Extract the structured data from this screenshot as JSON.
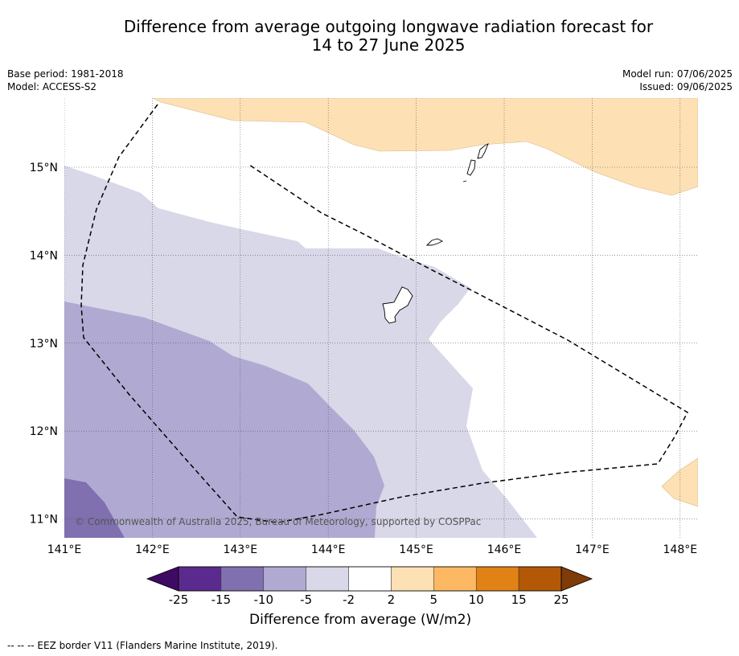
{
  "title": {
    "line1": "Difference from average outgoing longwave radiation forecast for",
    "line2": "14 to 27 June 2025"
  },
  "info": {
    "base_period": "Base period: 1981-2018",
    "model": "Model: ACCESS-S2",
    "model_run": "Model run: 07/06/2025",
    "issued": "Issued: 09/06/2025"
  },
  "map": {
    "lat_ticks": [
      {
        "value": 15,
        "label": "15°N"
      },
      {
        "value": 14,
        "label": "14°N"
      },
      {
        "value": 13,
        "label": "13°N"
      },
      {
        "value": 12,
        "label": "12°N"
      },
      {
        "value": 11,
        "label": "11°N"
      }
    ],
    "lon_ticks": [
      {
        "value": 141,
        "label": "141°E"
      },
      {
        "value": 142,
        "label": "142°E"
      },
      {
        "value": 143,
        "label": "143°E"
      },
      {
        "value": 144,
        "label": "144°E"
      },
      {
        "value": 145,
        "label": "145°E"
      },
      {
        "value": 146,
        "label": "146°E"
      },
      {
        "value": 147,
        "label": "147°E"
      },
      {
        "value": 148,
        "label": "148°E"
      }
    ],
    "lon_range": [
      141,
      148.2
    ],
    "lat_range": [
      10.8,
      15.8
    ],
    "copyright": "© Commonwealth of Australia 2025, Bureau of Meteorology, supported by COSPPac"
  },
  "colorbar": {
    "title": "Difference from average (W/m2)",
    "labels": [
      "-25",
      "-15",
      "-10",
      "-5",
      "-2",
      "2",
      "5",
      "10",
      "15",
      "25"
    ],
    "colors": [
      "#3f0a63",
      "#5b2a8e",
      "#8070b0",
      "#b0aad2",
      "#d8d8e9",
      "#ffffff",
      "#fde0b4",
      "#fdb863",
      "#e08214",
      "#b35806",
      "#7f3b08"
    ]
  },
  "footnote": "--  --  -- EEZ border V11 (Flanders Marine Institute, 2019)."
}
